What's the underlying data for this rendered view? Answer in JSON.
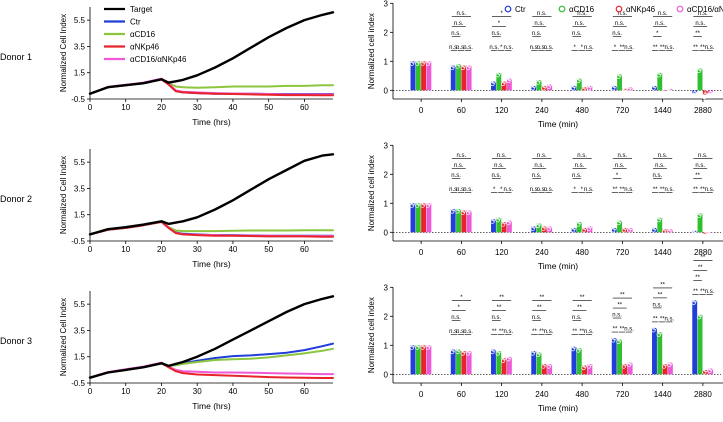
{
  "figure": {
    "donor_labels": [
      "Donor 1",
      "Donor 2",
      "Donor 3"
    ]
  },
  "legend_left": [
    {
      "name": "Target",
      "color": "#000000"
    },
    {
      "name": "Ctr",
      "color": "#1f3fd8"
    },
    {
      "name": "αCD16",
      "color": "#8cc63f"
    },
    {
      "name": "αNKp46",
      "color": "#e8232a"
    },
    {
      "name": "αCD16/αNKp46",
      "color": "#ee5ad6"
    }
  ],
  "legend_right": [
    {
      "name": "Ctr",
      "color": "#1f3fd8"
    },
    {
      "name": "αCD16",
      "color": "#2fbf2f"
    },
    {
      "name": "αNKp46",
      "color": "#e8232a"
    },
    {
      "name": "αCD16/αNKp46",
      "color": "#ee5ad6"
    }
  ],
  "chart_data": [
    {
      "type": "line",
      "panel": "donor1-time-course",
      "xlabel": "Time (hrs)",
      "ylabel": "Normalized Cell Index",
      "xlim": [
        0,
        68
      ],
      "ylim": [
        -0.5,
        6.5
      ],
      "xticks": [
        "0",
        "10",
        "20",
        "30",
        "40",
        "50",
        "60"
      ],
      "yticks": [
        "-0.5",
        "1.5",
        "3.5",
        "5.5"
      ],
      "x": [
        0,
        5,
        10,
        15,
        20,
        22,
        24,
        26,
        30,
        35,
        40,
        45,
        50,
        55,
        60,
        65,
        68
      ],
      "series": [
        {
          "name": "Target",
          "values": [
            -0.1,
            0.4,
            0.55,
            0.7,
            1.0,
            0.75,
            0.85,
            0.95,
            1.3,
            1.9,
            2.6,
            3.4,
            4.2,
            4.9,
            5.5,
            5.9,
            6.1
          ]
        },
        {
          "name": "Ctr",
          "values": [
            -0.1,
            0.4,
            0.55,
            0.7,
            1.0,
            0.6,
            0.1,
            0.0,
            -0.05,
            -0.1,
            -0.1,
            -0.1,
            -0.12,
            -0.12,
            -0.12,
            -0.12,
            -0.12
          ]
        },
        {
          "name": "αCD16",
          "values": [
            -0.1,
            0.4,
            0.55,
            0.7,
            1.0,
            0.7,
            0.45,
            0.4,
            0.35,
            0.4,
            0.45,
            0.45,
            0.45,
            0.5,
            0.5,
            0.55,
            0.55
          ]
        },
        {
          "name": "αNKp46",
          "values": [
            -0.1,
            0.4,
            0.55,
            0.7,
            1.0,
            0.6,
            0.1,
            0.0,
            -0.05,
            -0.1,
            -0.12,
            -0.15,
            -0.18,
            -0.2,
            -0.2,
            -0.22,
            -0.22
          ]
        },
        {
          "name": "αCD16/αNKp46",
          "values": [
            -0.1,
            0.42,
            0.58,
            0.75,
            1.05,
            0.65,
            0.15,
            0.05,
            0.0,
            -0.05,
            -0.08,
            -0.1,
            -0.12,
            -0.15,
            -0.15,
            -0.15,
            -0.15
          ]
        }
      ]
    },
    {
      "type": "line",
      "panel": "donor2-time-course",
      "xlabel": "Time (hrs)",
      "ylabel": "Normalized Cell Index",
      "xlim": [
        0,
        68
      ],
      "ylim": [
        -0.5,
        6.5
      ],
      "xticks": [
        "0",
        "10",
        "20",
        "30",
        "40",
        "50",
        "60"
      ],
      "yticks": [
        "-0.5",
        "1.5",
        "3.5",
        "5.5"
      ],
      "x": [
        0,
        5,
        10,
        15,
        20,
        22,
        24,
        26,
        30,
        35,
        40,
        45,
        50,
        55,
        60,
        65,
        68
      ],
      "series": [
        {
          "name": "Target",
          "values": [
            0.0,
            0.4,
            0.55,
            0.75,
            1.0,
            0.8,
            0.9,
            1.0,
            1.3,
            1.9,
            2.6,
            3.4,
            4.2,
            4.9,
            5.6,
            6.0,
            6.1
          ]
        },
        {
          "name": "Ctr",
          "values": [
            0.0,
            0.35,
            0.5,
            0.7,
            0.95,
            0.5,
            0.15,
            0.05,
            0.0,
            -0.05,
            -0.05,
            -0.08,
            -0.1,
            -0.1,
            -0.1,
            -0.1,
            -0.1
          ]
        },
        {
          "name": "αCD16",
          "values": [
            0.0,
            0.35,
            0.5,
            0.7,
            0.95,
            0.55,
            0.3,
            0.25,
            0.25,
            0.25,
            0.28,
            0.3,
            0.3,
            0.3,
            0.32,
            0.32,
            0.32
          ]
        },
        {
          "name": "αNKp46",
          "values": [
            0.0,
            0.35,
            0.5,
            0.7,
            0.95,
            0.5,
            0.1,
            0.0,
            -0.05,
            -0.1,
            -0.1,
            -0.12,
            -0.15,
            -0.15,
            -0.15,
            -0.18,
            -0.18
          ]
        },
        {
          "name": "αCD16/αNKp46",
          "values": [
            0.02,
            0.37,
            0.52,
            0.72,
            0.97,
            0.52,
            0.12,
            0.02,
            -0.02,
            -0.05,
            -0.08,
            -0.1,
            -0.1,
            -0.12,
            -0.12,
            -0.12,
            -0.12
          ]
        }
      ]
    },
    {
      "type": "line",
      "panel": "donor3-time-course",
      "xlabel": "Time (hrs)",
      "ylabel": "Normalized Cell Index",
      "xlim": [
        0,
        68
      ],
      "ylim": [
        -0.5,
        6.5
      ],
      "xticks": [
        "0",
        "10",
        "20",
        "30",
        "40",
        "50",
        "60"
      ],
      "yticks": [
        "-0.5",
        "1.5",
        "3.5",
        "5.5"
      ],
      "x": [
        0,
        5,
        10,
        15,
        20,
        22,
        24,
        26,
        30,
        35,
        40,
        45,
        50,
        55,
        60,
        65,
        68
      ],
      "series": [
        {
          "name": "Target",
          "values": [
            -0.1,
            0.3,
            0.5,
            0.7,
            1.0,
            0.8,
            0.95,
            1.1,
            1.5,
            2.1,
            2.8,
            3.5,
            4.2,
            4.9,
            5.5,
            5.9,
            6.1
          ]
        },
        {
          "name": "Ctr",
          "values": [
            -0.1,
            0.3,
            0.5,
            0.7,
            1.0,
            0.8,
            0.9,
            1.0,
            1.2,
            1.4,
            1.55,
            1.6,
            1.7,
            1.8,
            2.0,
            2.3,
            2.5
          ]
        },
        {
          "name": "αCD16",
          "values": [
            -0.1,
            0.3,
            0.5,
            0.7,
            1.0,
            0.8,
            0.85,
            0.95,
            1.1,
            1.25,
            1.3,
            1.35,
            1.45,
            1.6,
            1.75,
            1.95,
            2.1
          ]
        },
        {
          "name": "αNKp46",
          "values": [
            -0.1,
            0.3,
            0.5,
            0.7,
            1.0,
            0.7,
            0.4,
            0.25,
            0.15,
            0.1,
            0.05,
            0.0,
            -0.05,
            -0.08,
            -0.1,
            -0.12,
            -0.12
          ]
        },
        {
          "name": "αCD16/αNKp46",
          "values": [
            -0.08,
            0.33,
            0.55,
            0.75,
            1.05,
            0.75,
            0.5,
            0.4,
            0.35,
            0.3,
            0.3,
            0.28,
            0.25,
            0.22,
            0.2,
            0.18,
            0.18
          ]
        }
      ]
    },
    {
      "type": "bar",
      "panel": "donor1-bars",
      "xlabel": "Time (min)",
      "ylabel": "Normalized cell index",
      "ylim": [
        -0.3,
        3.0
      ],
      "yticks": [
        "0",
        "1",
        "2",
        "3"
      ],
      "categories": [
        "0",
        "60",
        "120",
        "240",
        "480",
        "720",
        "1440",
        "2880"
      ],
      "series": [
        {
          "name": "Ctr",
          "values": [
            1.0,
            0.85,
            0.3,
            0.15,
            0.15,
            0.15,
            0.15,
            -0.1
          ]
        },
        {
          "name": "αCD16",
          "values": [
            1.0,
            0.9,
            0.6,
            0.35,
            0.4,
            0.55,
            0.6,
            0.75
          ]
        },
        {
          "name": "αNKp46",
          "values": [
            1.0,
            0.85,
            0.3,
            0.15,
            0.1,
            0.05,
            0.0,
            -0.15
          ]
        },
        {
          "name": "αCD16/αNKp46",
          "values": [
            1.0,
            0.85,
            0.4,
            0.2,
            0.15,
            0.1,
            0.05,
            -0.1
          ]
        }
      ],
      "significance": [
        [
          "n.s.",
          "n.s.",
          "n.s.",
          "n.s.",
          "n.s.",
          "n.s."
        ],
        [
          "n.s.",
          "n.s.",
          "n.s.",
          "n.s.",
          "n.s.",
          "n.s."
        ],
        [
          "*",
          "*",
          "n.s.",
          "n.s.",
          "*",
          "n.s."
        ],
        [
          "n.s.",
          "n.s.",
          "n.s.",
          "n.s.",
          "n.s.",
          "n.s."
        ],
        [
          "n.s.",
          "n.s.",
          "n.s.",
          "*",
          "*",
          "n.s."
        ],
        [
          "n.s.",
          "n.s.",
          "n.s.",
          "*",
          "**",
          "n.s."
        ],
        [
          "n.s.",
          "n.s.",
          "*",
          "**",
          "**",
          "n.s."
        ],
        [
          "n.s.",
          "n.s.",
          "**",
          "**",
          "**",
          "n.s."
        ]
      ]
    },
    {
      "type": "bar",
      "panel": "donor2-bars",
      "xlabel": "Time (min)",
      "ylabel": "Normalized cell index",
      "ylim": [
        -0.3,
        3.0
      ],
      "yticks": [
        "0",
        "1",
        "2",
        "3"
      ],
      "categories": [
        "0",
        "60",
        "120",
        "240",
        "480",
        "720",
        "1440",
        "2880"
      ],
      "series": [
        {
          "name": "Ctr",
          "values": [
            1.0,
            0.8,
            0.45,
            0.2,
            0.15,
            0.15,
            0.15,
            0.05
          ]
        },
        {
          "name": "αCD16",
          "values": [
            1.0,
            0.8,
            0.5,
            0.3,
            0.35,
            0.4,
            0.5,
            0.65
          ]
        },
        {
          "name": "αNKp46",
          "values": [
            1.0,
            0.75,
            0.35,
            0.2,
            0.15,
            0.15,
            0.1,
            -0.05
          ]
        },
        {
          "name": "αCD16/αNKp46",
          "values": [
            1.0,
            0.75,
            0.4,
            0.2,
            0.2,
            0.15,
            0.1,
            0.0
          ]
        }
      ],
      "significance": [
        [
          "n.s.",
          "n.s.",
          "n.s.",
          "n.s.",
          "n.s.",
          "n.s."
        ],
        [
          "n.s.",
          "n.s.",
          "n.s.",
          "n.s.",
          "n.s.",
          "n.s."
        ],
        [
          "n.s.",
          "n.s.",
          "n.s.",
          "*",
          "*",
          "n.s."
        ],
        [
          "n.s.",
          "n.s.",
          "n.s.",
          "n.s.",
          "n.s.",
          "n.s."
        ],
        [
          "n.s.",
          "n.s.",
          "n.s.",
          "*",
          "*",
          "n.s."
        ],
        [
          "n.s.",
          "n.s.",
          "*",
          "**",
          "**",
          "n.s."
        ],
        [
          "n.s.",
          "n.s.",
          "n.s.",
          "**",
          "**",
          "n.s."
        ],
        [
          "n.s.",
          "n.s.",
          "**",
          "**",
          "**",
          "n.s."
        ]
      ]
    },
    {
      "type": "bar",
      "panel": "donor3-bars",
      "xlabel": "Time (min)",
      "ylabel": "Normalized cell index",
      "ylim": [
        -0.3,
        3.0
      ],
      "yticks": [
        "0",
        "1",
        "2",
        "3"
      ],
      "categories": [
        "0",
        "60",
        "120",
        "240",
        "480",
        "720",
        "1440",
        "2880"
      ],
      "series": [
        {
          "name": "Ctr",
          "values": [
            1.0,
            0.85,
            0.85,
            0.8,
            0.95,
            1.25,
            1.6,
            2.55
          ]
        },
        {
          "name": "αCD16",
          "values": [
            1.0,
            0.85,
            0.8,
            0.75,
            0.9,
            1.2,
            1.45,
            2.05
          ]
        },
        {
          "name": "αNKp46",
          "values": [
            1.0,
            0.8,
            0.55,
            0.35,
            0.3,
            0.35,
            0.35,
            0.15
          ]
        },
        {
          "name": "αCD16/αNKp46",
          "values": [
            1.0,
            0.8,
            0.6,
            0.35,
            0.35,
            0.4,
            0.4,
            0.2
          ]
        }
      ],
      "significance": [
        [
          "n.s.",
          "n.s.",
          "n.s.",
          "n.s.",
          "n.s.",
          "n.s."
        ],
        [
          "*",
          "*",
          "n.s.",
          "n.s.",
          "n.s.",
          "n.s."
        ],
        [
          "**",
          "**",
          "n.s.",
          "**",
          "**",
          "n.s."
        ],
        [
          "**",
          "**",
          "n.s.",
          "**",
          "**",
          "n.s."
        ],
        [
          "**",
          "**",
          "n.s.",
          "**",
          "**",
          "n.s."
        ],
        [
          "**",
          "**",
          "n.s.",
          "**",
          "**",
          "n.s."
        ],
        [
          "**",
          "**",
          "n.s.",
          "**",
          "**",
          "n.s."
        ],
        [
          "**",
          "**",
          "**",
          "**",
          "**",
          "n.s."
        ]
      ]
    }
  ]
}
